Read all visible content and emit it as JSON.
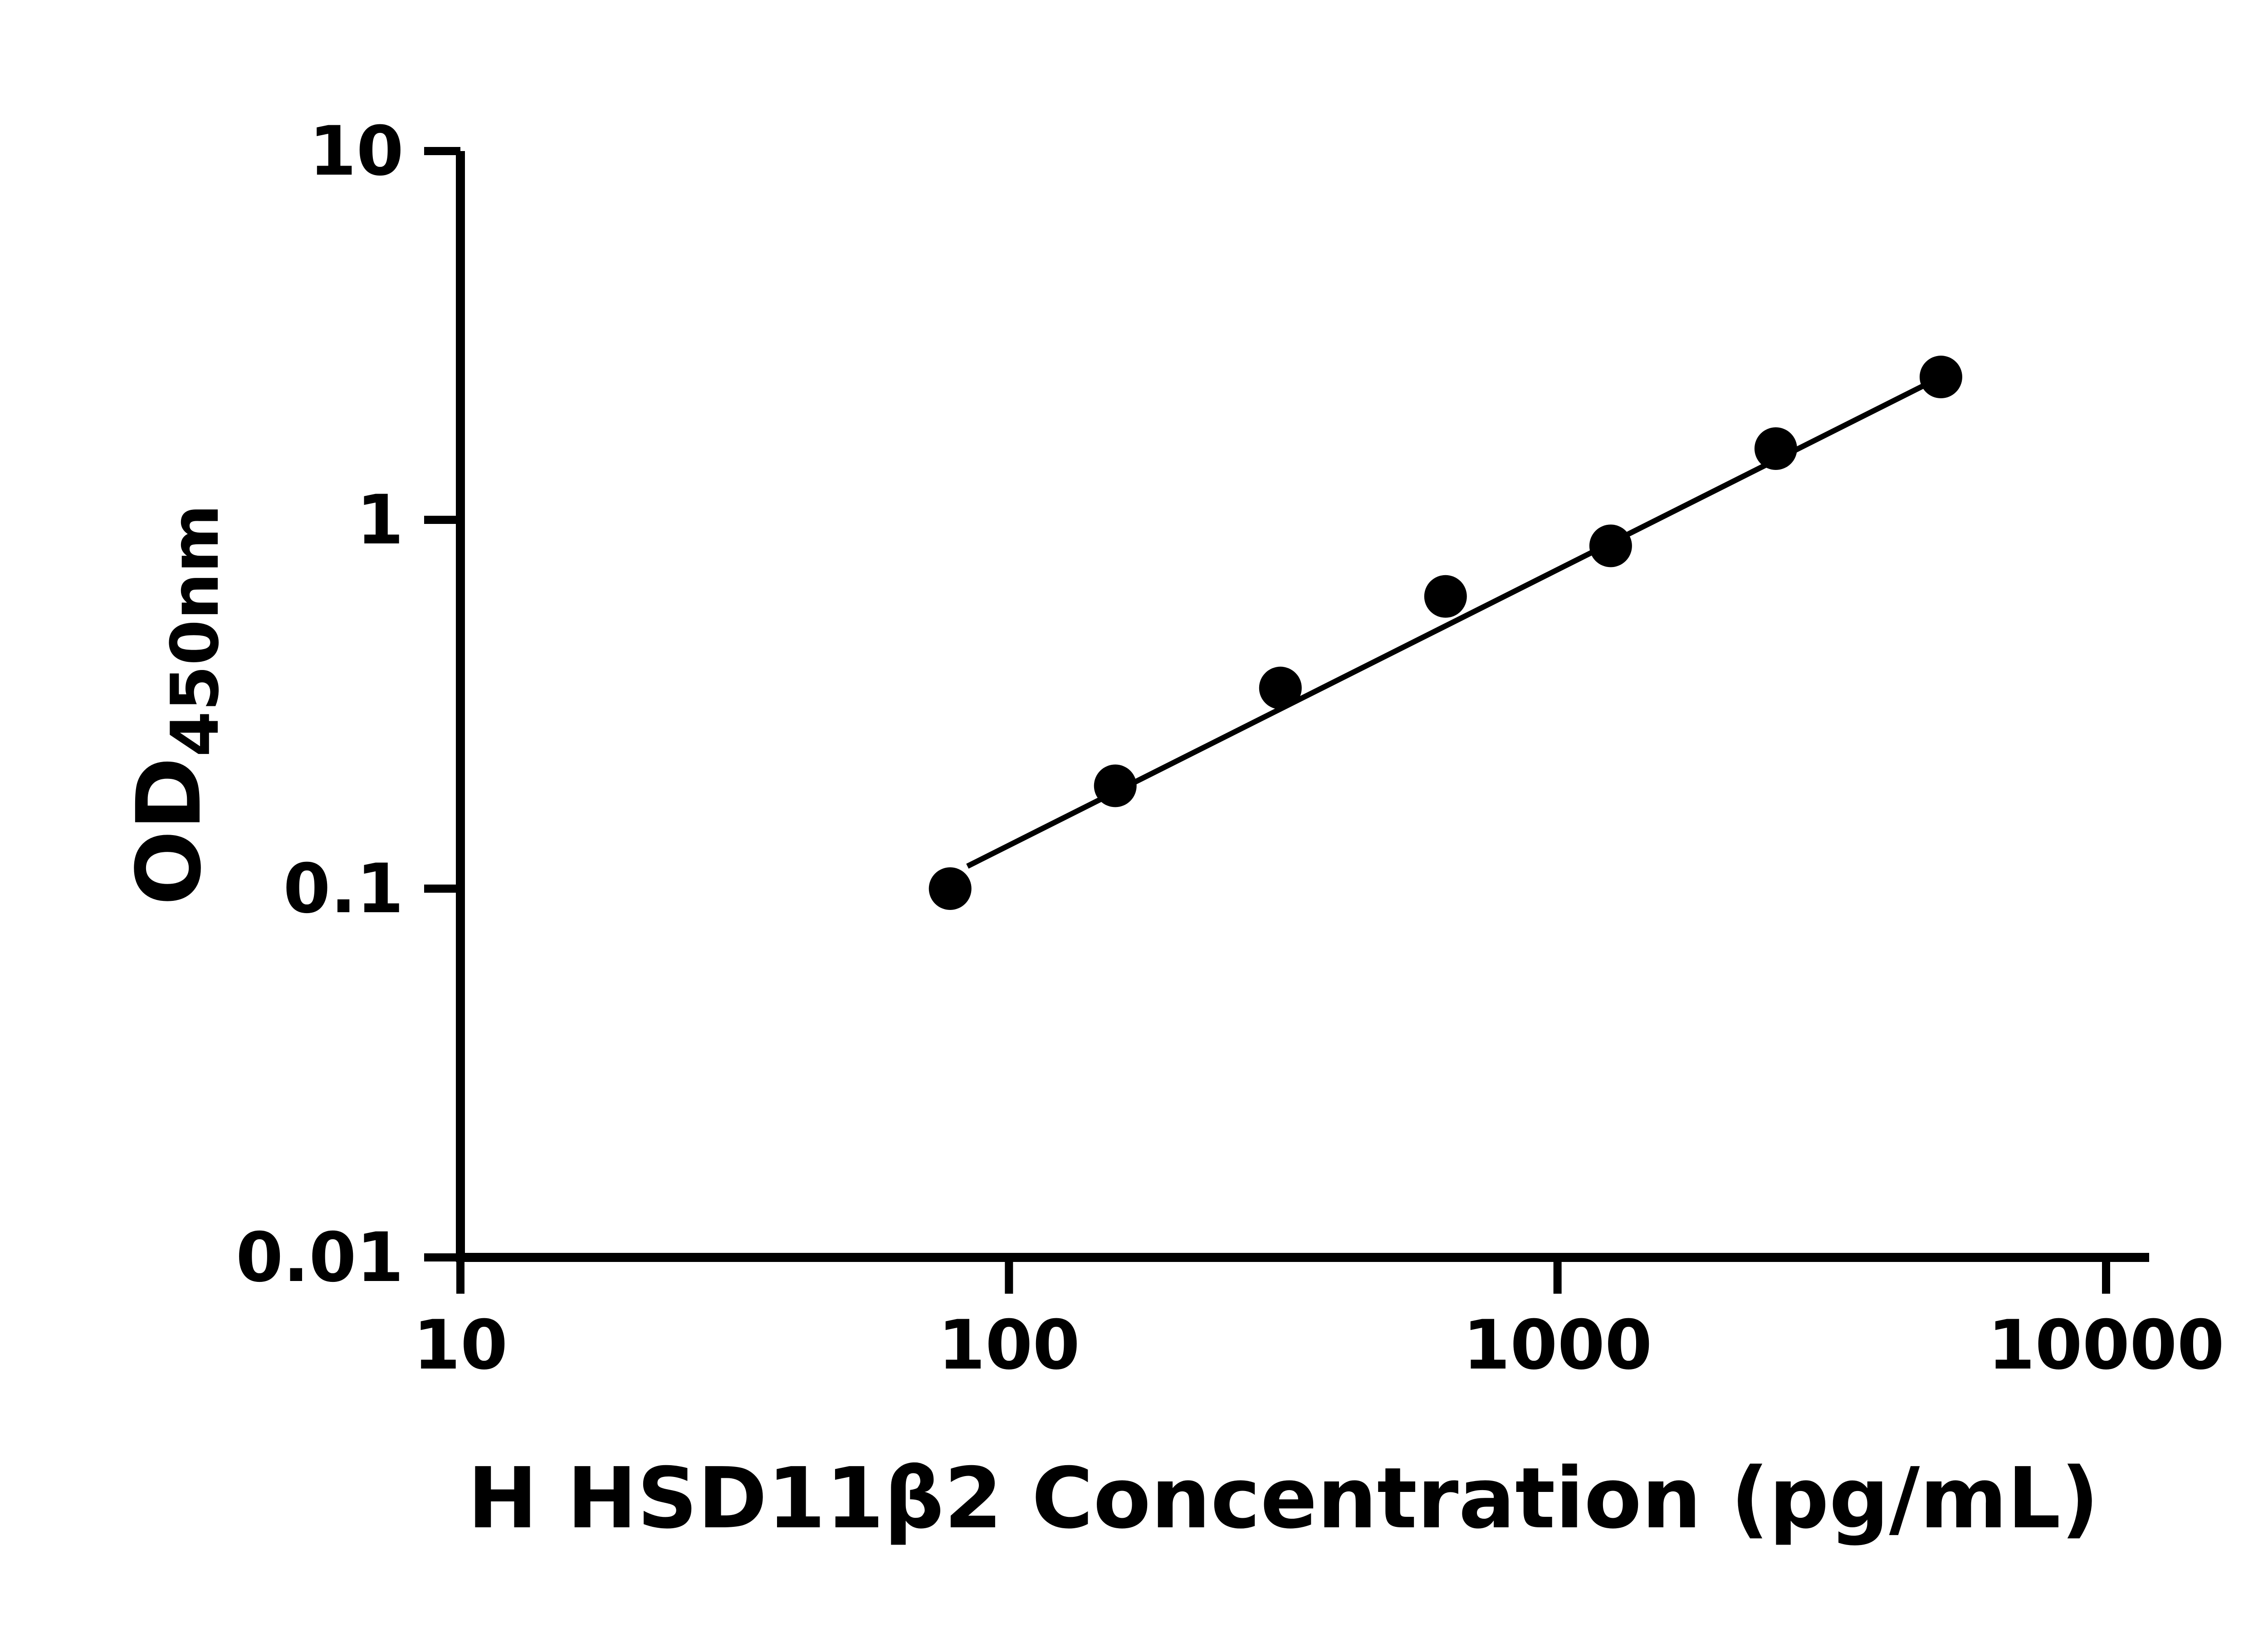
{
  "figure": {
    "background": "#ffffff",
    "axis_color": "#000000",
    "point_color": "#000000",
    "trend_color": "#000000"
  },
  "chart_data": {
    "type": "scatter",
    "title": "",
    "xlabel": "H HSD11β2 Concentration (pg/mL)",
    "ylabel_main": "OD",
    "ylabel_sub": "450nm",
    "x_scale": "log",
    "y_scale": "log",
    "xlim": [
      10,
      10000
    ],
    "ylim": [
      0.01,
      10
    ],
    "x_ticks": [
      10,
      100,
      1000,
      10000
    ],
    "x_tick_labels": [
      "10",
      "100",
      "1000",
      "10000"
    ],
    "y_ticks": [
      0.01,
      0.1,
      1,
      10
    ],
    "y_tick_labels": [
      "0.01",
      "0.1",
      "1",
      "10"
    ],
    "grid": false,
    "legend": "none",
    "x": [
      78.125,
      156.25,
      312.5,
      625,
      1250,
      2500,
      5000
    ],
    "y": [
      0.1,
      0.19,
      0.35,
      0.62,
      0.85,
      1.56,
      2.44
    ],
    "trend_line": {
      "x1": 84,
      "y1": 0.115,
      "x2": 5000,
      "y2": 2.44
    }
  }
}
